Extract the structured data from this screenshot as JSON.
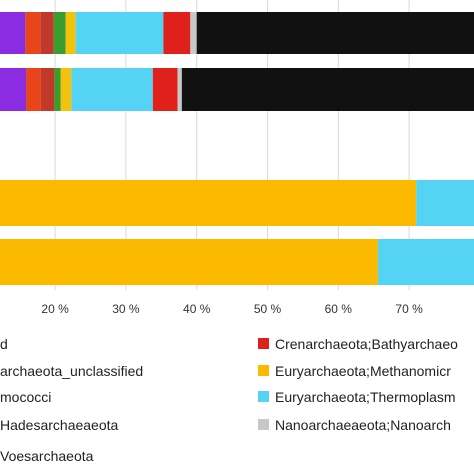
{
  "chart_data": {
    "type": "bar",
    "orientation": "horizontal",
    "stacked": true,
    "x_axis": {
      "min": 0,
      "max": 100,
      "ticks": [
        "20 %",
        "30 %",
        "40 %",
        "50 %",
        "60 %",
        "70 %"
      ]
    },
    "grid": true,
    "colors": {
      "purple": "#8B2BE2",
      "orange_red": "#E8451A",
      "dark_red": "#C0392B",
      "green": "#3A9E2E",
      "yellow": "#F5C20B",
      "gold": "#FBB900",
      "cyan": "#55D3F5",
      "red": "#E0201B",
      "gray": "#C8C8C8",
      "black": "#111111"
    },
    "rows": [
      {
        "segments": [
          {
            "color": "purple",
            "start": 0,
            "end": 15.8
          },
          {
            "color": "orange_red",
            "start": 15.8,
            "end": 17.9
          },
          {
            "color": "dark_red",
            "start": 17.9,
            "end": 19.8
          },
          {
            "color": "green",
            "start": 19.8,
            "end": 21.5
          },
          {
            "color": "yellow",
            "start": 21.5,
            "end": 22.9
          },
          {
            "color": "cyan",
            "start": 22.9,
            "end": 35.3
          },
          {
            "color": "red",
            "start": 35.3,
            "end": 39.1
          },
          {
            "color": "gray",
            "start": 39.1,
            "end": 40.0
          },
          {
            "color": "black",
            "start": 40.0,
            "end": 100
          }
        ]
      },
      {
        "segments": [
          {
            "color": "purple",
            "start": 0,
            "end": 15.9
          },
          {
            "color": "orange_red",
            "start": 15.9,
            "end": 18.0
          },
          {
            "color": "dark_red",
            "start": 18.0,
            "end": 19.9
          },
          {
            "color": "green",
            "start": 19.9,
            "end": 20.8
          },
          {
            "color": "yellow",
            "start": 20.8,
            "end": 22.3
          },
          {
            "color": "cyan",
            "start": 22.3,
            "end": 33.8
          },
          {
            "color": "red",
            "start": 33.8,
            "end": 37.3
          },
          {
            "color": "gray",
            "start": 37.3,
            "end": 37.9
          },
          {
            "color": "black",
            "start": 37.9,
            "end": 100
          }
        ]
      },
      {
        "segments": [
          {
            "color": "gold",
            "start": 0,
            "end": 71.0
          },
          {
            "color": "cyan",
            "start": 71.0,
            "end": 100
          }
        ]
      },
      {
        "segments": [
          {
            "color": "gold",
            "start": 0,
            "end": 65.6
          },
          {
            "color": "cyan",
            "start": 65.6,
            "end": 100
          }
        ]
      }
    ],
    "legend": [
      {
        "label": "d",
        "color": null
      },
      {
        "label": "Crenarchaeota;Bathyarchaeo",
        "color": "red"
      },
      {
        "label": "archaeota_unclassified",
        "color": null
      },
      {
        "label": "Euryarchaeota;Methanomicr",
        "color": "gold"
      },
      {
        "label": "mococci",
        "color": null
      },
      {
        "label": "Euryarchaeota;Thermoplasm",
        "color": "cyan"
      },
      {
        "label": "Hadesarchaeaeota",
        "color": null
      },
      {
        "label": "Nanoarchaeaeota;Nanoarch",
        "color": "gray"
      },
      {
        "label": "Voesarchaeota",
        "color": null
      }
    ]
  }
}
